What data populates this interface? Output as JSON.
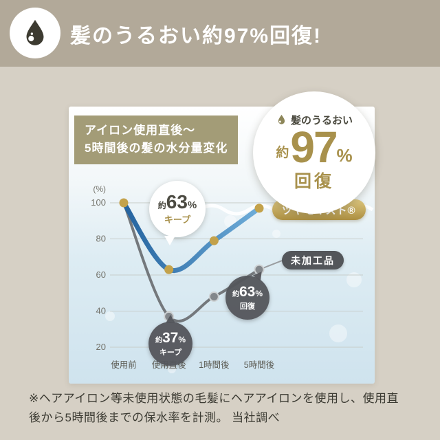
{
  "header": {
    "title": "髪のうるおい約97%回復!"
  },
  "panel_title": {
    "line1": "アイロン使用直後〜",
    "line2": "5時間後の髪の水分量変化"
  },
  "badge": {
    "drop_label": "髪のうるおい",
    "approx": "約",
    "value": "97",
    "percent": "%",
    "suffix": "回復"
  },
  "chart_data": {
    "type": "line",
    "title": "アイロン使用直後〜5時間後の髪の水分量変化",
    "categories": [
      "使用前",
      "使用直後",
      "1時間後",
      "5時間後"
    ],
    "unit_label": "(%)",
    "yticks": [
      100,
      80,
      60,
      40,
      20
    ],
    "ylim": [
      20,
      100
    ],
    "grid": true,
    "series": [
      {
        "name": "ツヤモイスト®",
        "values": [
          100,
          63,
          79,
          97
        ],
        "color_start": "#24639f",
        "color_end": "#6fadd9",
        "dot_color": "#c3a24b"
      },
      {
        "name": "未加工品",
        "values": [
          100,
          37,
          48,
          63
        ],
        "color": "#74787c",
        "dot_color": "#83878b"
      }
    ],
    "annotations": [
      {
        "text": "約63%キープ",
        "series": "ツヤモイスト®",
        "category": "使用直後"
      },
      {
        "text": "約37%キープ",
        "series": "未加工品",
        "category": "使用直後"
      },
      {
        "text": "約63%回復",
        "series": "未加工品",
        "category": "5時間後"
      }
    ]
  },
  "callouts": {
    "keep63": {
      "approx": "約",
      "value": "63",
      "unit": "%",
      "label": "キープ"
    },
    "keep37": {
      "approx": "約",
      "value": "37",
      "unit": "%",
      "label": "キープ"
    },
    "recover63": {
      "approx": "約",
      "value": "63",
      "unit": "%",
      "label": "回復"
    }
  },
  "labels": {
    "product_pill": "ツヤモイスト®",
    "untreated_pill": "未加工品"
  },
  "footnote": {
    "line1": "※ヘアアイロン等未使用状態の毛髪にヘアアイロンを使用し、使用直",
    "line2": "後から5時間後までの保水率を計測。 当社調べ"
  },
  "colors": {
    "header_bg": "#b2a999",
    "page_bg": "#d6d0c5",
    "title_box": "#a39c77",
    "gold": "#a8914c",
    "dark": "#54565c"
  }
}
